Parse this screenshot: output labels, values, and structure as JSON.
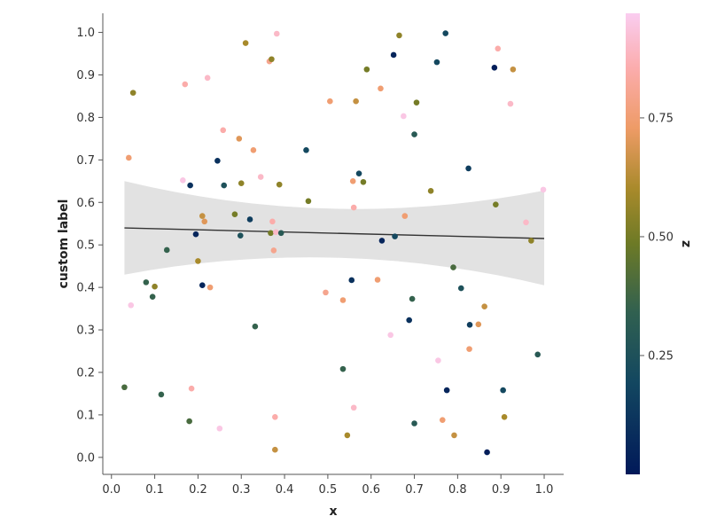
{
  "chart_data": {
    "type": "scatter",
    "xlabel": "x",
    "ylabel": "custom label",
    "colorbar_label": "z",
    "xlim": [
      -0.02,
      1.045
    ],
    "ylim": [
      -0.04,
      1.045
    ],
    "x_ticks": [
      "0.0",
      "0.1",
      "0.2",
      "0.3",
      "0.4",
      "0.5",
      "0.6",
      "0.7",
      "0.8",
      "0.9",
      "1.0"
    ],
    "y_ticks": [
      "0.0",
      "0.1",
      "0.2",
      "0.3",
      "0.4",
      "0.5",
      "0.6",
      "0.7",
      "0.8",
      "0.9",
      "1.0"
    ],
    "colorbar": {
      "range": [
        0.0,
        0.97
      ],
      "ticks": [
        "0.25",
        "0.50",
        "0.75"
      ],
      "colormap": "batlow"
    },
    "regression": {
      "x0": 0.03,
      "y0": 0.54,
      "x1": 1.0,
      "y1": 0.515,
      "ci_low": [
        0.43,
        0.47,
        0.405
      ],
      "ci_high": [
        0.65,
        0.585,
        0.628
      ]
    },
    "points": [
      {
        "x": 0.03,
        "y": 0.165,
        "z": 0.4
      },
      {
        "x": 0.04,
        "y": 0.705,
        "z": 0.75
      },
      {
        "x": 0.045,
        "y": 0.358,
        "z": 0.95
      },
      {
        "x": 0.05,
        "y": 0.858,
        "z": 0.55
      },
      {
        "x": 0.08,
        "y": 0.412,
        "z": 0.35
      },
      {
        "x": 0.095,
        "y": 0.378,
        "z": 0.35
      },
      {
        "x": 0.1,
        "y": 0.402,
        "z": 0.55
      },
      {
        "x": 0.115,
        "y": 0.148,
        "z": 0.35
      },
      {
        "x": 0.128,
        "y": 0.488,
        "z": 0.35
      },
      {
        "x": 0.165,
        "y": 0.652,
        "z": 0.95
      },
      {
        "x": 0.17,
        "y": 0.878,
        "z": 0.85
      },
      {
        "x": 0.18,
        "y": 0.085,
        "z": 0.4
      },
      {
        "x": 0.182,
        "y": 0.64,
        "z": 0.1
      },
      {
        "x": 0.185,
        "y": 0.162,
        "z": 0.85
      },
      {
        "x": 0.195,
        "y": 0.525,
        "z": 0.05
      },
      {
        "x": 0.2,
        "y": 0.462,
        "z": 0.6
      },
      {
        "x": 0.21,
        "y": 0.405,
        "z": 0.05
      },
      {
        "x": 0.21,
        "y": 0.568,
        "z": 0.65
      },
      {
        "x": 0.215,
        "y": 0.555,
        "z": 0.7
      },
      {
        "x": 0.222,
        "y": 0.893,
        "z": 0.9
      },
      {
        "x": 0.228,
        "y": 0.4,
        "z": 0.75
      },
      {
        "x": 0.245,
        "y": 0.698,
        "z": 0.1
      },
      {
        "x": 0.25,
        "y": 0.068,
        "z": 0.95
      },
      {
        "x": 0.258,
        "y": 0.77,
        "z": 0.85
      },
      {
        "x": 0.26,
        "y": 0.64,
        "z": 0.25
      },
      {
        "x": 0.285,
        "y": 0.572,
        "z": 0.5
      },
      {
        "x": 0.295,
        "y": 0.75,
        "z": 0.7
      },
      {
        "x": 0.298,
        "y": 0.522,
        "z": 0.25
      },
      {
        "x": 0.3,
        "y": 0.645,
        "z": 0.55
      },
      {
        "x": 0.31,
        "y": 0.975,
        "z": 0.6
      },
      {
        "x": 0.32,
        "y": 0.56,
        "z": 0.15
      },
      {
        "x": 0.328,
        "y": 0.723,
        "z": 0.75
      },
      {
        "x": 0.332,
        "y": 0.308,
        "z": 0.35
      },
      {
        "x": 0.345,
        "y": 0.66,
        "z": 0.9
      },
      {
        "x": 0.365,
        "y": 0.932,
        "z": 0.8
      },
      {
        "x": 0.368,
        "y": 0.528,
        "z": 0.5
      },
      {
        "x": 0.37,
        "y": 0.937,
        "z": 0.55
      },
      {
        "x": 0.372,
        "y": 0.555,
        "z": 0.85
      },
      {
        "x": 0.375,
        "y": 0.487,
        "z": 0.8
      },
      {
        "x": 0.378,
        "y": 0.095,
        "z": 0.85
      },
      {
        "x": 0.378,
        "y": 0.018,
        "z": 0.65
      },
      {
        "x": 0.38,
        "y": 0.53,
        "z": 0.9
      },
      {
        "x": 0.382,
        "y": 0.997,
        "z": 0.9
      },
      {
        "x": 0.388,
        "y": 0.642,
        "z": 0.55
      },
      {
        "x": 0.392,
        "y": 0.528,
        "z": 0.3
      },
      {
        "x": 0.45,
        "y": 0.723,
        "z": 0.2
      },
      {
        "x": 0.455,
        "y": 0.603,
        "z": 0.5
      },
      {
        "x": 0.495,
        "y": 0.388,
        "z": 0.8
      },
      {
        "x": 0.505,
        "y": 0.838,
        "z": 0.75
      },
      {
        "x": 0.535,
        "y": 0.37,
        "z": 0.75
      },
      {
        "x": 0.535,
        "y": 0.208,
        "z": 0.35
      },
      {
        "x": 0.545,
        "y": 0.052,
        "z": 0.6
      },
      {
        "x": 0.555,
        "y": 0.417,
        "z": 0.1
      },
      {
        "x": 0.558,
        "y": 0.65,
        "z": 0.75
      },
      {
        "x": 0.56,
        "y": 0.588,
        "z": 0.85
      },
      {
        "x": 0.56,
        "y": 0.117,
        "z": 0.9
      },
      {
        "x": 0.565,
        "y": 0.838,
        "z": 0.65
      },
      {
        "x": 0.572,
        "y": 0.668,
        "z": 0.2
      },
      {
        "x": 0.582,
        "y": 0.648,
        "z": 0.5
      },
      {
        "x": 0.59,
        "y": 0.913,
        "z": 0.5
      },
      {
        "x": 0.615,
        "y": 0.418,
        "z": 0.75
      },
      {
        "x": 0.622,
        "y": 0.868,
        "z": 0.75
      },
      {
        "x": 0.625,
        "y": 0.51,
        "z": 0.05
      },
      {
        "x": 0.645,
        "y": 0.288,
        "z": 0.95
      },
      {
        "x": 0.652,
        "y": 0.947,
        "z": 0.05
      },
      {
        "x": 0.655,
        "y": 0.52,
        "z": 0.2
      },
      {
        "x": 0.665,
        "y": 0.993,
        "z": 0.55
      },
      {
        "x": 0.675,
        "y": 0.803,
        "z": 0.95
      },
      {
        "x": 0.678,
        "y": 0.568,
        "z": 0.75
      },
      {
        "x": 0.688,
        "y": 0.323,
        "z": 0.1
      },
      {
        "x": 0.695,
        "y": 0.373,
        "z": 0.35
      },
      {
        "x": 0.7,
        "y": 0.76,
        "z": 0.3
      },
      {
        "x": 0.7,
        "y": 0.08,
        "z": 0.3
      },
      {
        "x": 0.705,
        "y": 0.835,
        "z": 0.5
      },
      {
        "x": 0.738,
        "y": 0.627,
        "z": 0.55
      },
      {
        "x": 0.752,
        "y": 0.93,
        "z": 0.2
      },
      {
        "x": 0.755,
        "y": 0.228,
        "z": 0.95
      },
      {
        "x": 0.765,
        "y": 0.088,
        "z": 0.75
      },
      {
        "x": 0.772,
        "y": 0.998,
        "z": 0.2
      },
      {
        "x": 0.775,
        "y": 0.158,
        "z": 0.05
      },
      {
        "x": 0.79,
        "y": 0.447,
        "z": 0.4
      },
      {
        "x": 0.792,
        "y": 0.052,
        "z": 0.65
      },
      {
        "x": 0.808,
        "y": 0.398,
        "z": 0.25
      },
      {
        "x": 0.825,
        "y": 0.68,
        "z": 0.15
      },
      {
        "x": 0.827,
        "y": 0.255,
        "z": 0.75
      },
      {
        "x": 0.828,
        "y": 0.312,
        "z": 0.15
      },
      {
        "x": 0.848,
        "y": 0.313,
        "z": 0.7
      },
      {
        "x": 0.862,
        "y": 0.355,
        "z": 0.65
      },
      {
        "x": 0.868,
        "y": 0.012,
        "z": 0.02
      },
      {
        "x": 0.885,
        "y": 0.917,
        "z": 0.02
      },
      {
        "x": 0.888,
        "y": 0.595,
        "z": 0.5
      },
      {
        "x": 0.893,
        "y": 0.962,
        "z": 0.85
      },
      {
        "x": 0.905,
        "y": 0.158,
        "z": 0.2
      },
      {
        "x": 0.908,
        "y": 0.095,
        "z": 0.6
      },
      {
        "x": 0.922,
        "y": 0.832,
        "z": 0.9
      },
      {
        "x": 0.928,
        "y": 0.913,
        "z": 0.65
      },
      {
        "x": 0.958,
        "y": 0.553,
        "z": 0.9
      },
      {
        "x": 0.97,
        "y": 0.51,
        "z": 0.55
      },
      {
        "x": 0.985,
        "y": 0.242,
        "z": 0.3
      },
      {
        "x": 0.998,
        "y": 0.63,
        "z": 0.95
      }
    ]
  }
}
